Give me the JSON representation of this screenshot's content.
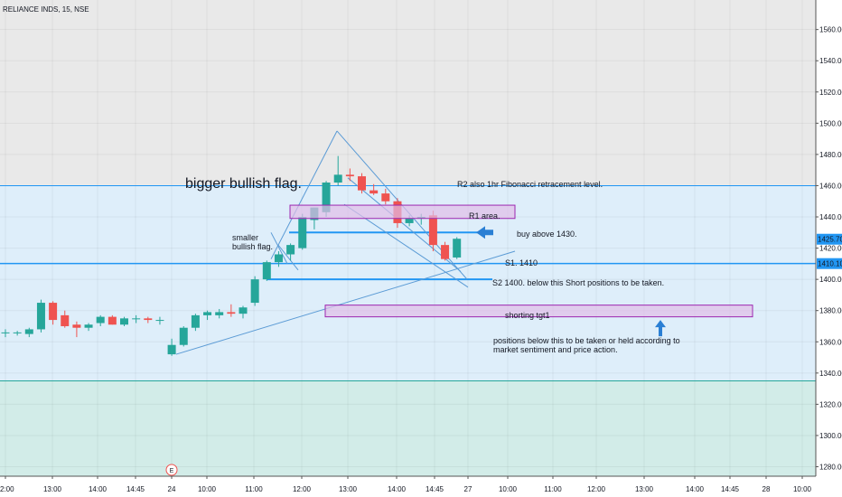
{
  "header": {
    "symbol_line": "RELIANCE INDS, 15, NSE"
  },
  "colors": {
    "up": "#26a69a",
    "down": "#ef5350",
    "top_zone": "#e9e9e9",
    "mid_zone": "#deeefa",
    "bottom_zone": "#d2ece8",
    "line_blue": "#2196f3",
    "pattern_blue": "#5b9bd5",
    "rect_fill": "#e1bee7",
    "rect_stroke": "#9c27b0",
    "price_tag": "#2196f3"
  },
  "chart_data": {
    "type": "candlestick",
    "ylim": [
      1273,
      1590
    ],
    "y_ticks": [
      1280,
      1300,
      1320,
      1340,
      1360,
      1380,
      1400,
      1420,
      1440,
      1460,
      1480,
      1500,
      1520,
      1540,
      1560
    ],
    "x_ticks": [
      "2:00",
      "13:00",
      "14:00",
      "14:45",
      "24",
      "10:00",
      "11:00",
      "12:00",
      "13:00",
      "14:00",
      "14:45",
      "27",
      "10:00",
      "11:00",
      "12:00",
      "13:00",
      "14:00",
      "14:45",
      "28",
      "10:00"
    ],
    "candles": [
      {
        "o": 1366,
        "h": 1368,
        "l": 1363,
        "c": 1366
      },
      {
        "o": 1366,
        "h": 1367,
        "l": 1364,
        "c": 1366
      },
      {
        "o": 1365,
        "h": 1369,
        "l": 1363,
        "c": 1368
      },
      {
        "o": 1368,
        "h": 1387,
        "l": 1366,
        "c": 1385
      },
      {
        "o": 1385,
        "h": 1386,
        "l": 1371,
        "c": 1374
      },
      {
        "o": 1377,
        "h": 1380,
        "l": 1369,
        "c": 1370
      },
      {
        "o": 1371,
        "h": 1373,
        "l": 1363,
        "c": 1369
      },
      {
        "o": 1369,
        "h": 1372,
        "l": 1367,
        "c": 1371
      },
      {
        "o": 1372,
        "h": 1377,
        "l": 1370,
        "c": 1376
      },
      {
        "o": 1376,
        "h": 1377,
        "l": 1371,
        "c": 1371
      },
      {
        "o": 1371,
        "h": 1376,
        "l": 1370,
        "c": 1375
      },
      {
        "o": 1375,
        "h": 1377,
        "l": 1372,
        "c": 1375
      },
      {
        "o": 1375,
        "h": 1376,
        "l": 1372,
        "c": 1374
      },
      {
        "o": 1374,
        "h": 1376,
        "l": 1371,
        "c": 1374
      },
      {
        "o": 1352,
        "h": 1362,
        "l": 1351,
        "c": 1358
      },
      {
        "o": 1358,
        "h": 1370,
        "l": 1357,
        "c": 1369
      },
      {
        "o": 1369,
        "h": 1378,
        "l": 1367,
        "c": 1377
      },
      {
        "o": 1377,
        "h": 1380,
        "l": 1374,
        "c": 1379
      },
      {
        "o": 1377,
        "h": 1381,
        "l": 1375,
        "c": 1379
      },
      {
        "o": 1379,
        "h": 1384,
        "l": 1376,
        "c": 1378
      },
      {
        "o": 1378,
        "h": 1383,
        "l": 1375,
        "c": 1382
      },
      {
        "o": 1385,
        "h": 1402,
        "l": 1383,
        "c": 1400
      },
      {
        "o": 1400,
        "h": 1412,
        "l": 1399,
        "c": 1411
      },
      {
        "o": 1411,
        "h": 1418,
        "l": 1408,
        "c": 1416
      },
      {
        "o": 1416,
        "h": 1423,
        "l": 1412,
        "c": 1422
      },
      {
        "o": 1420,
        "h": 1442,
        "l": 1419,
        "c": 1440
      },
      {
        "o": 1438,
        "h": 1446,
        "l": 1432,
        "c": 1446
      },
      {
        "o": 1443,
        "h": 1463,
        "l": 1440,
        "c": 1462
      },
      {
        "o": 1462,
        "h": 1479,
        "l": 1460,
        "c": 1467
      },
      {
        "o": 1467,
        "h": 1471,
        "l": 1463,
        "c": 1466
      },
      {
        "o": 1466,
        "h": 1468,
        "l": 1455,
        "c": 1457
      },
      {
        "o": 1457,
        "h": 1461,
        "l": 1454,
        "c": 1455
      },
      {
        "o": 1455,
        "h": 1458,
        "l": 1448,
        "c": 1450
      },
      {
        "o": 1450,
        "h": 1452,
        "l": 1433,
        "c": 1436
      },
      {
        "o": 1436,
        "h": 1441,
        "l": 1434,
        "c": 1439
      },
      {
        "o": 1439,
        "h": 1442,
        "l": 1435,
        "c": 1440
      },
      {
        "o": 1441,
        "h": 1444,
        "l": 1418,
        "c": 1422
      },
      {
        "o": 1422,
        "h": 1424,
        "l": 1412,
        "c": 1413
      },
      {
        "o": 1414,
        "h": 1427,
        "l": 1413,
        "c": 1426
      }
    ],
    "price_tags": [
      {
        "value": 1425.7,
        "text": "1425.70"
      },
      {
        "value": 1410.1,
        "text": "1410.10"
      }
    ],
    "annotations": [
      {
        "text": "bigger bullish flag.",
        "size": "large"
      },
      {
        "text": "smaller\nbullish flag.",
        "size": "small"
      },
      {
        "text": "R2 also 1hr Fibonacci retracement level.",
        "size": "small"
      },
      {
        "text": "R1 area.",
        "size": "small"
      },
      {
        "text": "buy above 1430.",
        "size": "small"
      },
      {
        "text": "S1. 1410",
        "size": "small"
      },
      {
        "text": "S2 1400. below this Short positions to be taken.",
        "size": "small"
      },
      {
        "text": "shorting tgt1",
        "size": "small"
      },
      {
        "text": "positions below this to  be taken or held according to\nmarket sentiment and price action.",
        "size": "small"
      }
    ],
    "event_marker": "E"
  }
}
